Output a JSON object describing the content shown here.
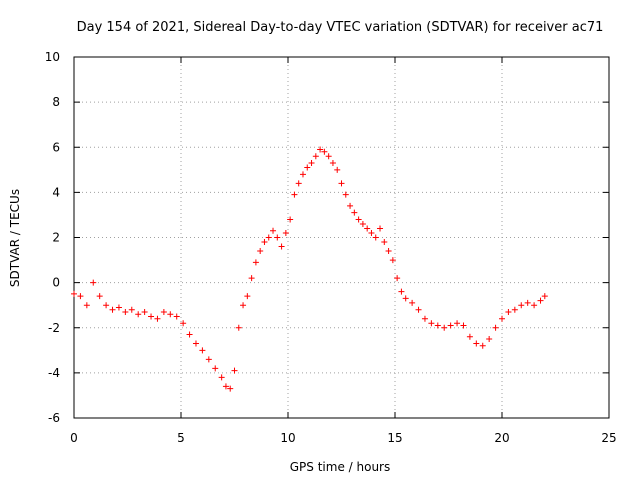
{
  "chart_data": {
    "type": "scatter",
    "title": "Day 154 of 2021, Sidereal Day-to-day VTEC variation (SDTVAR) for receiver ac71",
    "xlabel": "GPS time / hours",
    "ylabel": "SDTVAR / TECUs",
    "xlim": [
      0,
      25
    ],
    "ylim": [
      -6,
      10
    ],
    "xticks": [
      0,
      5,
      10,
      15,
      20,
      25
    ],
    "yticks": [
      -6,
      -4,
      -2,
      0,
      2,
      4,
      6,
      8,
      10
    ],
    "grid": true,
    "marker": "+",
    "color": "#ff0000",
    "series": [
      {
        "name": "SDTVAR",
        "x": [
          0.0,
          0.3,
          0.6,
          0.9,
          1.2,
          1.5,
          1.8,
          2.1,
          2.4,
          2.7,
          3.0,
          3.3,
          3.6,
          3.9,
          4.2,
          4.5,
          4.8,
          5.1,
          5.4,
          5.7,
          6.0,
          6.3,
          6.6,
          6.9,
          7.1,
          7.3,
          7.5,
          7.7,
          7.9,
          8.1,
          8.3,
          8.5,
          8.7,
          8.9,
          9.1,
          9.3,
          9.5,
          9.7,
          9.9,
          10.1,
          10.3,
          10.5,
          10.7,
          10.9,
          11.1,
          11.3,
          11.5,
          11.7,
          11.9,
          12.1,
          12.3,
          12.5,
          12.7,
          12.9,
          13.1,
          13.3,
          13.5,
          13.7,
          13.9,
          14.1,
          14.3,
          14.5,
          14.7,
          14.9,
          15.1,
          15.3,
          15.5,
          15.8,
          16.1,
          16.4,
          16.7,
          17.0,
          17.3,
          17.6,
          17.9,
          18.2,
          18.5,
          18.8,
          19.1,
          19.4,
          19.7,
          20.0,
          20.3,
          20.6,
          20.9,
          21.2,
          21.5,
          21.8,
          22.0
        ],
        "y": [
          -0.5,
          -0.6,
          -1.0,
          0.0,
          -0.6,
          -1.0,
          -1.2,
          -1.1,
          -1.3,
          -1.2,
          -1.4,
          -1.3,
          -1.5,
          -1.6,
          -1.3,
          -1.4,
          -1.5,
          -1.8,
          -2.3,
          -2.7,
          -3.0,
          -3.4,
          -3.8,
          -4.2,
          -4.6,
          -4.7,
          -3.9,
          -2.0,
          -1.0,
          -0.6,
          0.2,
          0.9,
          1.4,
          1.8,
          2.0,
          2.3,
          2.0,
          1.6,
          2.2,
          2.8,
          3.9,
          4.4,
          4.8,
          5.1,
          5.3,
          5.6,
          5.9,
          5.8,
          5.6,
          5.3,
          5.0,
          4.4,
          3.9,
          3.4,
          3.1,
          2.8,
          2.6,
          2.4,
          2.2,
          2.0,
          2.4,
          1.8,
          1.4,
          1.0,
          0.2,
          -0.4,
          -0.7,
          -0.9,
          -1.2,
          -1.6,
          -1.8,
          -1.9,
          -2.0,
          -1.9,
          -1.8,
          -1.9,
          -2.4,
          -2.7,
          -2.8,
          -2.5,
          -2.0,
          -1.6,
          -1.3,
          -1.2,
          -1.0,
          -0.9,
          -1.0,
          -0.8,
          -0.6
        ]
      }
    ]
  }
}
